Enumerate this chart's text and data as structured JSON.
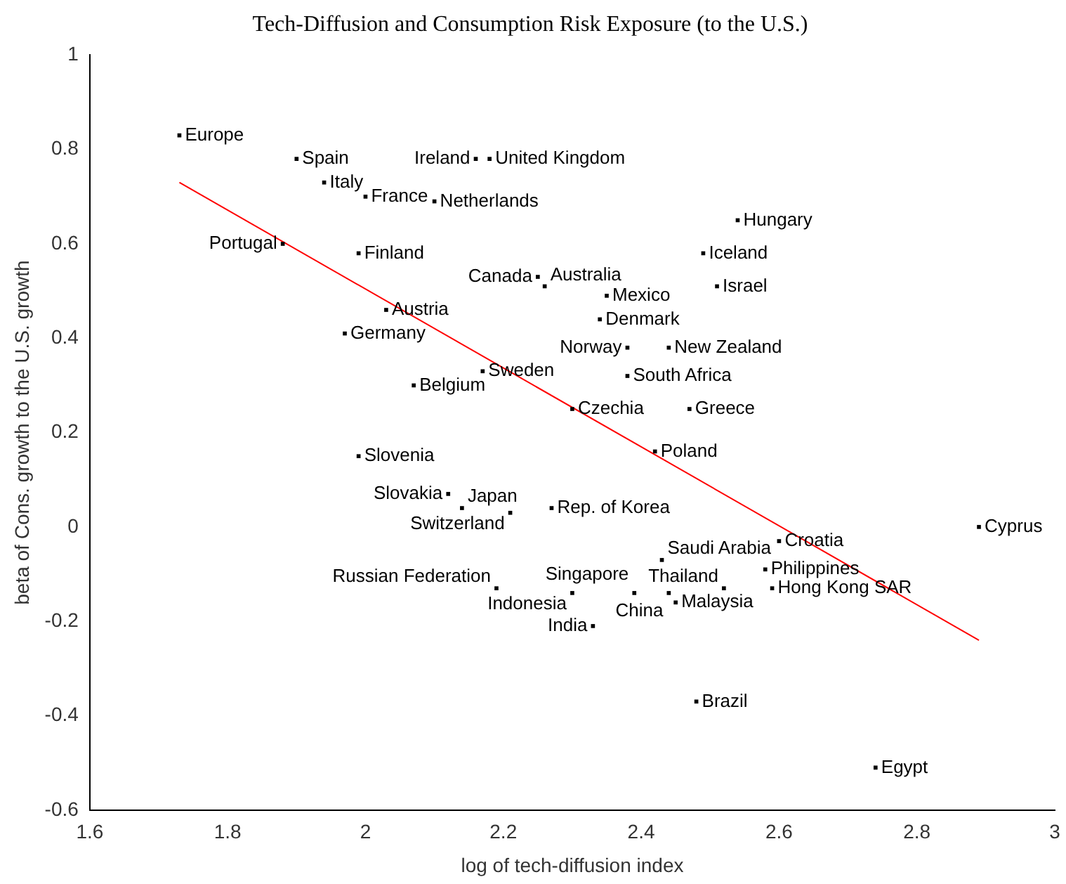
{
  "chart_data": {
    "type": "scatter",
    "title": "Tech-Diffusion and Consumption Risk Exposure (to the U.S.)",
    "xlabel": "log of tech-diffusion index",
    "ylabel": "beta of Cons. growth to the U.S. growth",
    "xlim": [
      1.6,
      3
    ],
    "xticks": [
      1.6,
      1.8,
      2,
      2.2,
      2.4,
      2.6,
      2.8,
      3
    ],
    "ylim": [
      -0.6,
      1
    ],
    "yticks": [
      -0.6,
      -0.4,
      -0.2,
      0,
      0.2,
      0.4,
      0.6,
      0.8,
      1
    ],
    "grid": false,
    "legend": false,
    "marker": "square",
    "series": [
      {
        "name": "Europe",
        "color": "#000000",
        "x": [
          1.73
        ],
        "values": [
          0.83
        ]
      },
      {
        "name": "Spain",
        "color": "#000000",
        "x": [
          1.9
        ],
        "values": [
          0.78
        ]
      },
      {
        "name": "Italy",
        "color": "#000000",
        "x": [
          1.94
        ],
        "values": [
          0.73
        ]
      },
      {
        "name": "France",
        "color": "#000000",
        "x": [
          2.0
        ],
        "values": [
          0.7
        ]
      },
      {
        "name": "Netherlands",
        "color": "#000000",
        "x": [
          2.1
        ],
        "values": [
          0.69
        ]
      },
      {
        "name": "Ireland",
        "color": "#000000",
        "x": [
          2.16
        ],
        "values": [
          0.78
        ]
      },
      {
        "name": "United Kingdom",
        "color": "#000000",
        "x": [
          2.18
        ],
        "values": [
          0.78
        ]
      },
      {
        "name": "Portugal",
        "color": "#000000",
        "x": [
          1.88
        ],
        "values": [
          0.6
        ]
      },
      {
        "name": "Finland",
        "color": "#000000",
        "x": [
          1.99
        ],
        "values": [
          0.58
        ]
      },
      {
        "name": "Austria",
        "color": "#000000",
        "x": [
          2.03
        ],
        "values": [
          0.46
        ]
      },
      {
        "name": "Germany",
        "color": "#000000",
        "x": [
          1.97
        ],
        "values": [
          0.41
        ]
      },
      {
        "name": "Belgium",
        "color": "#000000",
        "x": [
          2.07
        ],
        "values": [
          0.3
        ]
      },
      {
        "name": "Sweden",
        "color": "#000000",
        "x": [
          2.17
        ],
        "values": [
          0.33
        ]
      },
      {
        "name": "Canada",
        "color": "#000000",
        "x": [
          2.25
        ],
        "values": [
          0.53
        ]
      },
      {
        "name": "Australia",
        "color": "#000000",
        "x": [
          2.26
        ],
        "values": [
          0.51
        ]
      },
      {
        "name": "Mexico",
        "color": "#000000",
        "x": [
          2.35
        ],
        "values": [
          0.49
        ]
      },
      {
        "name": "Denmark",
        "color": "#000000",
        "x": [
          2.34
        ],
        "values": [
          0.44
        ]
      },
      {
        "name": "Norway",
        "color": "#000000",
        "x": [
          2.38
        ],
        "values": [
          0.38
        ]
      },
      {
        "name": "New Zealand",
        "color": "#000000",
        "x": [
          2.44
        ],
        "values": [
          0.38
        ]
      },
      {
        "name": "South Africa",
        "color": "#000000",
        "x": [
          2.38
        ],
        "values": [
          0.32
        ]
      },
      {
        "name": "Czechia",
        "color": "#000000",
        "x": [
          2.3
        ],
        "values": [
          0.25
        ]
      },
      {
        "name": "Greece",
        "color": "#000000",
        "x": [
          2.47
        ],
        "values": [
          0.25
        ]
      },
      {
        "name": "Hungary",
        "color": "#000000",
        "x": [
          2.54
        ],
        "values": [
          0.65
        ]
      },
      {
        "name": "Iceland",
        "color": "#000000",
        "x": [
          2.49
        ],
        "values": [
          0.58
        ]
      },
      {
        "name": "Israel",
        "color": "#000000",
        "x": [
          2.51
        ],
        "values": [
          0.51
        ]
      },
      {
        "name": "Poland",
        "color": "#000000",
        "x": [
          2.42
        ],
        "values": [
          0.16
        ]
      },
      {
        "name": "Slovenia",
        "color": "#000000",
        "x": [
          1.99
        ],
        "values": [
          0.15
        ]
      },
      {
        "name": "Slovakia",
        "color": "#000000",
        "x": [
          2.12
        ],
        "values": [
          0.07
        ]
      },
      {
        "name": "Japan",
        "color": "#000000",
        "x": [
          2.14
        ],
        "values": [
          0.04
        ]
      },
      {
        "name": "Switzerland",
        "color": "#000000",
        "x": [
          2.21
        ],
        "values": [
          0.03
        ]
      },
      {
        "name": "Rep. of Korea",
        "color": "#000000",
        "x": [
          2.27
        ],
        "values": [
          0.04
        ]
      },
      {
        "name": "Russian Federation",
        "color": "#000000",
        "x": [
          2.19
        ],
        "values": [
          -0.13
        ]
      },
      {
        "name": "Indonesia",
        "color": "#000000",
        "x": [
          2.3
        ],
        "values": [
          -0.14
        ]
      },
      {
        "name": "Singapore",
        "color": "#000000",
        "x": [
          2.39
        ],
        "values": [
          -0.14
        ]
      },
      {
        "name": "China",
        "color": "#000000",
        "x": [
          2.44
        ],
        "values": [
          -0.14
        ]
      },
      {
        "name": "Malaysia",
        "color": "#000000",
        "x": [
          2.45
        ],
        "values": [
          -0.16
        ]
      },
      {
        "name": "Thailand",
        "color": "#000000",
        "x": [
          2.52
        ],
        "values": [
          -0.13
        ]
      },
      {
        "name": "Hong Kong SAR",
        "color": "#000000",
        "x": [
          2.59
        ],
        "values": [
          -0.13
        ]
      },
      {
        "name": "India",
        "color": "#000000",
        "x": [
          2.33
        ],
        "values": [
          -0.21
        ]
      },
      {
        "name": "Saudi Arabia",
        "color": "#000000",
        "x": [
          2.43
        ],
        "values": [
          -0.07
        ]
      },
      {
        "name": "Croatia",
        "color": "#000000",
        "x": [
          2.6
        ],
        "values": [
          -0.03
        ]
      },
      {
        "name": "Philippines",
        "color": "#000000",
        "x": [
          2.58
        ],
        "values": [
          -0.09
        ]
      },
      {
        "name": "Brazil",
        "color": "#000000",
        "x": [
          2.48
        ],
        "values": [
          -0.37
        ]
      },
      {
        "name": "Egypt",
        "color": "#000000",
        "x": [
          2.74
        ],
        "values": [
          -0.51
        ]
      },
      {
        "name": "Cyprus",
        "color": "#000000",
        "x": [
          2.89
        ],
        "values": [
          0.0
        ]
      },
      {
        "type": "line",
        "marker": "none",
        "color": "#ff0000",
        "x": [
          1.73,
          2.89
        ],
        "values": [
          0.73,
          -0.24
        ]
      }
    ]
  }
}
